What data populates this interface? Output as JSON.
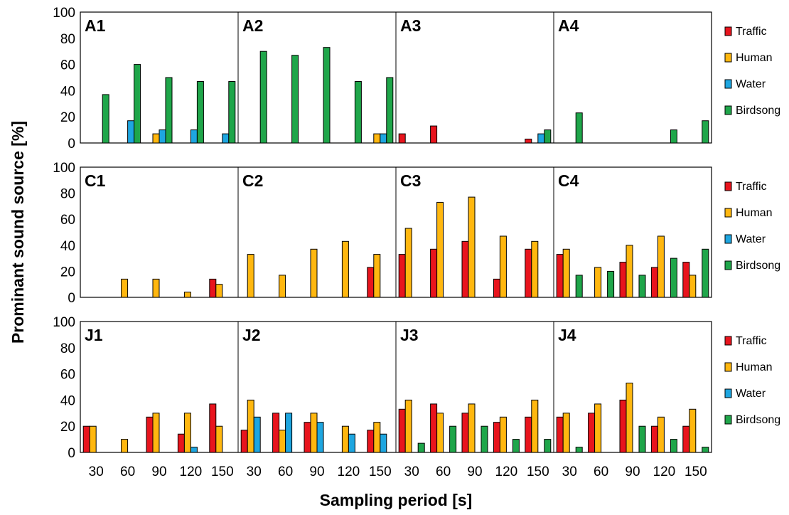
{
  "chart_data": {
    "type": "bar",
    "ylabel": "Prominant sound source [%]",
    "xlabel": "Sampling period [s]",
    "ylim": [
      0,
      100
    ],
    "yticks": [
      "0",
      "20",
      "40",
      "60",
      "80",
      "100"
    ],
    "categories": [
      "30",
      "60",
      "90",
      "120",
      "150"
    ],
    "legend_placement": "right",
    "series_names": [
      "Traffic",
      "Human",
      "Water",
      "Birdsong"
    ],
    "colors": [
      "#e8141d",
      "#ffb70f",
      "#1ea6e0",
      "#1fa64a"
    ],
    "rows": [
      {
        "panels": [
          {
            "label": "A1",
            "values": [
              [
                0,
                0,
                0,
                37
              ],
              [
                0,
                0,
                17,
                60
              ],
              [
                0,
                7,
                10,
                50
              ],
              [
                0,
                0,
                10,
                47
              ],
              [
                0,
                0,
                7,
                47
              ]
            ]
          },
          {
            "label": "A2",
            "values": [
              [
                0,
                0,
                0,
                70
              ],
              [
                0,
                0,
                0,
                67
              ],
              [
                0,
                0,
                0,
                73
              ],
              [
                0,
                0,
                0,
                47
              ],
              [
                0,
                7,
                7,
                50
              ]
            ]
          },
          {
            "label": "A3",
            "values": [
              [
                7,
                0,
                0,
                0
              ],
              [
                13,
                0,
                0,
                0
              ],
              [
                0,
                0,
                0,
                0
              ],
              [
                0,
                0,
                0,
                0
              ],
              [
                3,
                0,
                7,
                10
              ]
            ]
          },
          {
            "label": "A4",
            "values": [
              [
                0,
                0,
                0,
                23
              ],
              [
                0,
                0,
                0,
                0
              ],
              [
                0,
                0,
                0,
                0
              ],
              [
                0,
                0,
                0,
                10
              ],
              [
                0,
                0,
                0,
                17
              ]
            ]
          }
        ]
      },
      {
        "panels": [
          {
            "label": "C1",
            "values": [
              [
                0,
                0,
                0,
                0
              ],
              [
                0,
                14,
                0,
                0
              ],
              [
                0,
                14,
                0,
                0
              ],
              [
                0,
                4,
                0,
                0
              ],
              [
                14,
                10,
                0,
                0
              ]
            ]
          },
          {
            "label": "C2",
            "values": [
              [
                0,
                33,
                0,
                0
              ],
              [
                0,
                17,
                0,
                0
              ],
              [
                0,
                37,
                0,
                0
              ],
              [
                0,
                43,
                0,
                0
              ],
              [
                23,
                33,
                0,
                0
              ]
            ]
          },
          {
            "label": "C3",
            "values": [
              [
                33,
                53,
                0,
                0
              ],
              [
                37,
                73,
                0,
                0
              ],
              [
                43,
                77,
                0,
                0
              ],
              [
                14,
                47,
                0,
                0
              ],
              [
                37,
                43,
                0,
                0
              ]
            ]
          },
          {
            "label": "C4",
            "values": [
              [
                33,
                37,
                0,
                17
              ],
              [
                0,
                23,
                0,
                20
              ],
              [
                27,
                40,
                0,
                17
              ],
              [
                23,
                47,
                0,
                30
              ],
              [
                27,
                17,
                0,
                37
              ]
            ]
          }
        ]
      },
      {
        "panels": [
          {
            "label": "J1",
            "values": [
              [
                20,
                20,
                0,
                0
              ],
              [
                0,
                10,
                0,
                0
              ],
              [
                27,
                30,
                0,
                0
              ],
              [
                14,
                30,
                4,
                0
              ],
              [
                37,
                20,
                0,
                0
              ]
            ]
          },
          {
            "label": "J2",
            "values": [
              [
                17,
                40,
                27,
                0
              ],
              [
                30,
                17,
                30,
                0
              ],
              [
                23,
                30,
                23,
                0
              ],
              [
                0,
                20,
                14,
                0
              ],
              [
                17,
                23,
                14,
                0
              ]
            ]
          },
          {
            "label": "J3",
            "values": [
              [
                33,
                40,
                0,
                7
              ],
              [
                37,
                30,
                0,
                20
              ],
              [
                30,
                37,
                0,
                20
              ],
              [
                23,
                27,
                0,
                10
              ],
              [
                27,
                40,
                0,
                10
              ]
            ]
          },
          {
            "label": "J4",
            "values": [
              [
                27,
                30,
                0,
                4
              ],
              [
                30,
                37,
                0,
                0
              ],
              [
                40,
                53,
                0,
                20
              ],
              [
                20,
                27,
                0,
                10
              ],
              [
                20,
                33,
                0,
                4
              ]
            ]
          }
        ]
      }
    ]
  }
}
